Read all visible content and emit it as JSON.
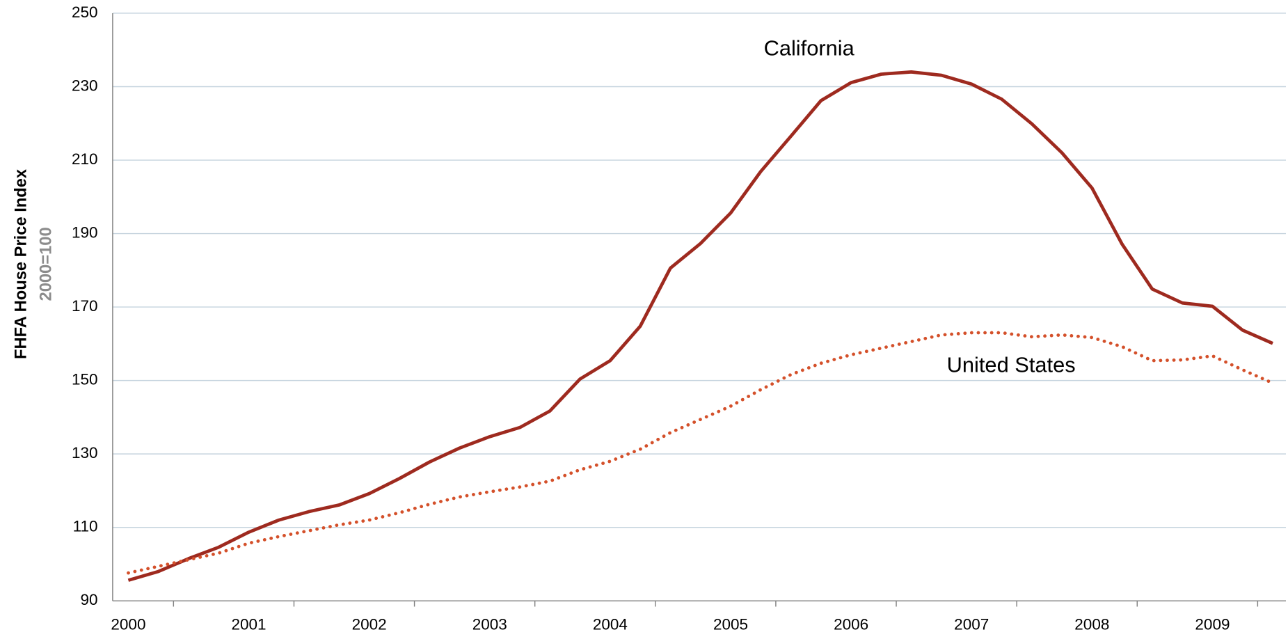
{
  "chart_data": {
    "type": "line",
    "y_axis_title": "FHFA House Price Index",
    "y_axis_subtitle": "2000=100",
    "categories": [
      "2000",
      null,
      null,
      null,
      "2001",
      null,
      null,
      null,
      "2002",
      null,
      null,
      null,
      "2003",
      null,
      null,
      null,
      "2004",
      null,
      null,
      null,
      "2005",
      null,
      null,
      null,
      "2006",
      null,
      null,
      null,
      "2007",
      null,
      null,
      null,
      "2008",
      null,
      null,
      null,
      "2009",
      null,
      null
    ],
    "series": [
      {
        "name": "California",
        "color": "#9e2a1f",
        "style": "solid",
        "values": [
          95.6,
          98,
          101.5,
          104.6,
          108.7,
          112,
          114.3,
          116.1,
          119.2,
          123.3,
          127.8,
          131.6,
          134.7,
          137.2,
          141.7,
          150.4,
          155.4,
          164.8,
          180.6,
          187.3,
          195.6,
          206.9,
          216.5,
          226.2,
          231.1,
          233.4,
          234,
          233.1,
          230.7,
          226.6,
          219.9,
          212,
          202.4,
          187.1,
          174.9,
          171.1,
          170.2,
          163.7,
          160.1
        ]
      },
      {
        "name": "United States",
        "color": "#d4502a",
        "style": "dotted",
        "values": [
          97.6,
          99.4,
          101.2,
          103,
          105.7,
          107.5,
          109.1,
          110.7,
          112,
          114,
          116.3,
          118.3,
          119.7,
          121,
          122.6,
          125.7,
          128,
          131.3,
          135.8,
          139.4,
          143,
          147.5,
          151.6,
          154.7,
          157,
          158.8,
          160.6,
          162.4,
          163,
          163,
          161.9,
          162.4,
          161.7,
          159.2,
          155.4,
          155.6,
          156.7,
          152.9,
          149.3
        ]
      }
    ],
    "ylim": [
      90,
      250
    ],
    "yticks": [
      90,
      110,
      130,
      150,
      170,
      190,
      210,
      230,
      250
    ],
    "grid": true
  }
}
